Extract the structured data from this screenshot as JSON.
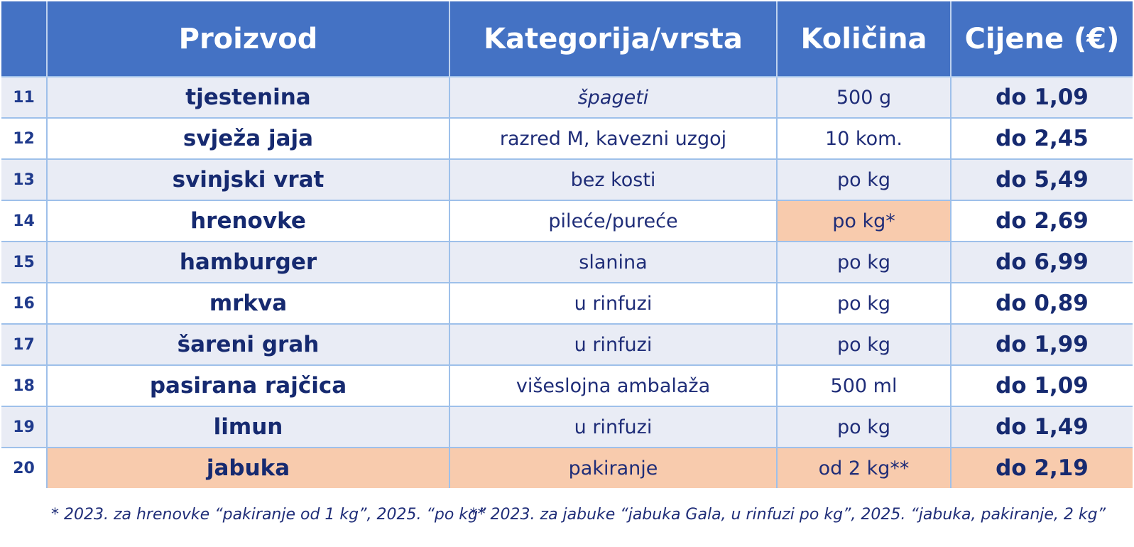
{
  "table": {
    "headers": [
      "",
      "Proizvod",
      "Kategorija/vrsta",
      "Količina",
      "Cijene (€)"
    ],
    "rows": [
      {
        "num": "11",
        "product": "tjestenina",
        "category": "špageti",
        "quantity": "500 g",
        "price": "do 1,09"
      },
      {
        "num": "12",
        "product": "svježa jaja",
        "category": "razred M, kavezni uzgoj",
        "quantity": "10 kom.",
        "price": "do 2,45"
      },
      {
        "num": "13",
        "product": "svinjski vrat",
        "category": "bez kosti",
        "quantity": "po kg",
        "price": "do 5,49"
      },
      {
        "num": "14",
        "product": "hrenovke",
        "category": "pileće/pureće",
        "quantity": "po kg*",
        "price": "do 2,69"
      },
      {
        "num": "15",
        "product": "hamburger",
        "category": "slanina",
        "quantity": "po kg",
        "price": "do 6,99"
      },
      {
        "num": "16",
        "product": "mrkva",
        "category": "u rinfuzi",
        "quantity": "po kg",
        "price": "do 0,89"
      },
      {
        "num": "17",
        "product": "šareni grah",
        "category": "u rinfuzi",
        "quantity": "po kg",
        "price": "do 1,99"
      },
      {
        "num": "18",
        "product": "pasirana rajčica",
        "category": "višeslojna ambalaža",
        "quantity": "500 ml",
        "price": "do 1,09"
      },
      {
        "num": "19",
        "product": "limun",
        "category": "u rinfuzi",
        "quantity": "po kg",
        "price": "do 1,49"
      },
      {
        "num": "20",
        "product": "jabuka",
        "category": "pakiranje",
        "quantity": "od 2 kg**",
        "price": "do 2,19"
      }
    ]
  },
  "footnotes": {
    "note1": "* 2023. za hrenovke “pakiranje od 1 kg”, 2025. “po kg”",
    "note2": "** 2023. za jabuke “jabuka Gala, u rinfuzi po kg”, 2025. “jabuka, pakiranje, 2 kg”"
  },
  "colors": {
    "header_bg": "#4472c4",
    "odd_row_bg": "#e9ecf5",
    "highlight_bg": "#f8cbad",
    "text": "#1f2d78"
  }
}
